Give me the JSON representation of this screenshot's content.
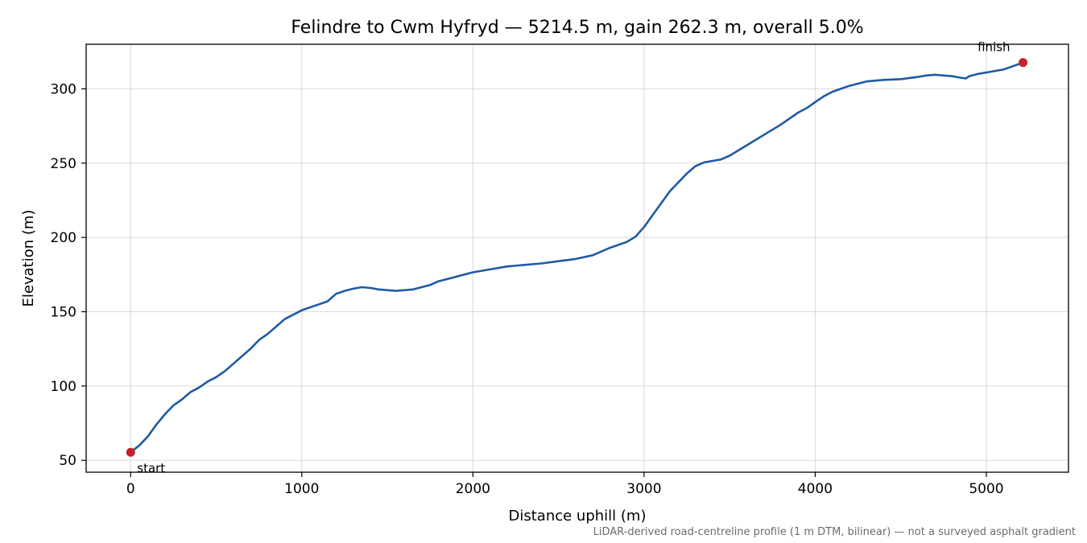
{
  "chart_data": {
    "type": "line",
    "title": "Felindre to Cwm Hyfryd — 5214.5 m, gain 262.3 m, overall 5.0%",
    "xlabel": "Distance uphill (m)",
    "ylabel": "Elevation (m)",
    "xlim": [
      -260,
      5480
    ],
    "ylim": [
      42,
      330
    ],
    "xticks": [
      0,
      1000,
      2000,
      3000,
      4000,
      5000
    ],
    "yticks": [
      50,
      100,
      150,
      200,
      250,
      300
    ],
    "grid": true,
    "line_color": "#1f5aa6",
    "marker_color": "#c8202a",
    "series": [
      {
        "x": [
          0,
          50,
          100,
          150,
          200,
          250,
          300,
          350,
          400,
          450,
          500,
          550,
          600,
          650,
          700,
          750,
          800,
          850,
          900,
          950,
          1000,
          1050,
          1100,
          1150,
          1200,
          1250,
          1300,
          1350,
          1400,
          1450,
          1500,
          1550,
          1600,
          1650,
          1700,
          1750,
          1800,
          1850,
          1900,
          1950,
          2000,
          2100,
          2200,
          2300,
          2400,
          2500,
          2600,
          2700,
          2800,
          2850,
          2900,
          2950,
          3000,
          3050,
          3100,
          3150,
          3200,
          3250,
          3300,
          3350,
          3400,
          3450,
          3500,
          3600,
          3700,
          3800,
          3900,
          3950,
          4000,
          4050,
          4100,
          4150,
          4200,
          4300,
          4400,
          4500,
          4600,
          4650,
          4700,
          4750,
          4800,
          4850,
          4880,
          4900,
          4950,
          5000,
          5100,
          5150,
          5214.5
        ],
        "y": [
          55.4,
          60,
          66,
          74,
          81,
          87,
          91,
          96,
          99,
          103,
          106,
          110,
          115,
          120,
          125,
          131,
          135,
          140,
          145,
          148,
          151,
          153,
          155,
          157,
          162,
          164,
          165.5,
          166.5,
          166,
          165,
          164.5,
          164,
          164.5,
          165,
          166.5,
          168,
          170.5,
          172,
          173.5,
          175,
          176.5,
          178.5,
          180.5,
          181.5,
          182.5,
          184,
          185.5,
          188,
          193,
          195,
          197,
          200.5,
          207,
          215,
          223,
          231,
          237,
          243,
          248,
          250.5,
          251.5,
          252.5,
          255,
          262,
          269,
          276,
          284,
          287,
          291,
          295,
          298,
          300,
          302,
          305,
          306,
          306.5,
          308,
          309,
          309.5,
          309,
          308.5,
          307.5,
          307,
          308.5,
          310,
          311,
          313,
          315,
          317.7
        ]
      }
    ],
    "annotations": [
      {
        "label": "start",
        "x": 0,
        "y": 55.4
      },
      {
        "label": "finish",
        "x": 5214.5,
        "y": 317.7
      }
    ],
    "footnote": "LiDAR-derived road-centreline profile (1 m DTM, bilinear) — not a surveyed asphalt gradient"
  }
}
